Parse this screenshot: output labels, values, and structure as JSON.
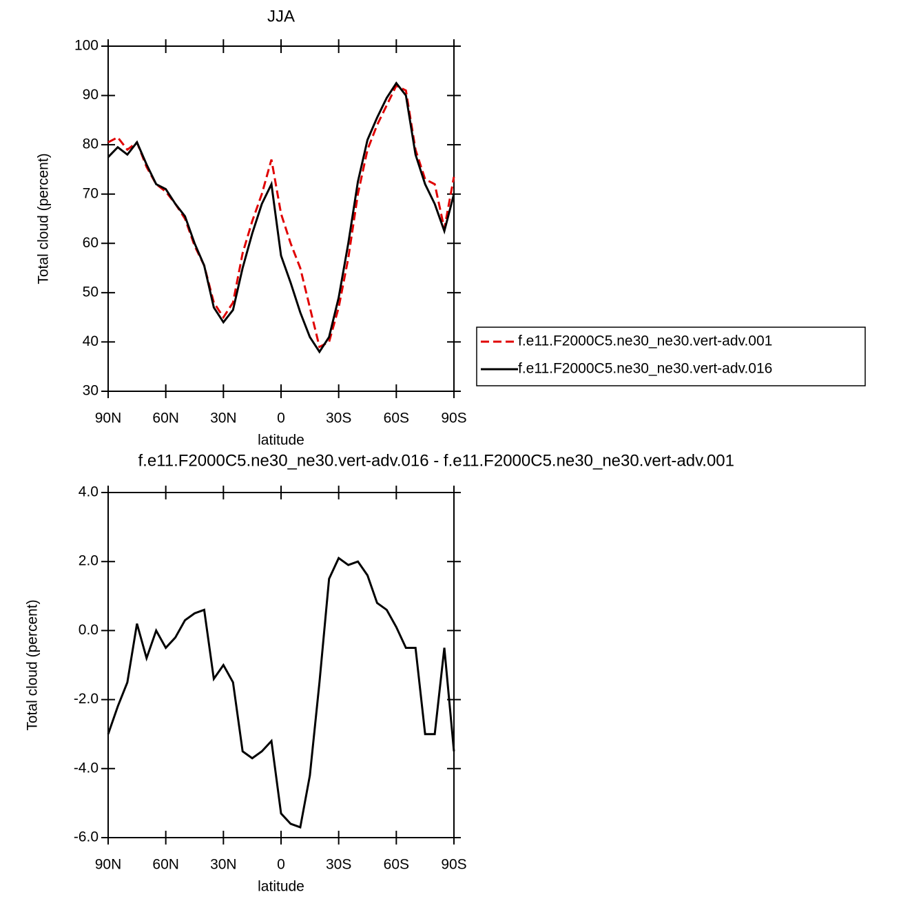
{
  "chart_data": [
    {
      "type": "line",
      "title": "JJA",
      "xlabel": "latitude",
      "ylabel": "Total cloud (percent)",
      "x": [
        90,
        85,
        80,
        75,
        70,
        65,
        60,
        55,
        50,
        45,
        40,
        35,
        30,
        25,
        20,
        15,
        10,
        5,
        0,
        -5,
        -10,
        -15,
        -20,
        -25,
        -30,
        -35,
        -40,
        -45,
        -50,
        -55,
        -60,
        -65,
        -70,
        -75,
        -80,
        -85,
        -90
      ],
      "xlim": [
        90,
        -90
      ],
      "xticks": [
        {
          "value": 90,
          "label": "90N"
        },
        {
          "value": 60,
          "label": "60N"
        },
        {
          "value": 30,
          "label": "30N"
        },
        0,
        {
          "value": -30,
          "label": "30S"
        },
        {
          "value": -60,
          "label": "60S"
        },
        {
          "value": -90,
          "label": "90S"
        }
      ],
      "ylim": [
        30,
        100
      ],
      "yticks": [
        30,
        40,
        50,
        60,
        70,
        80,
        90,
        100
      ],
      "legend": "right",
      "series": [
        {
          "name": "f.e11.F2000C5.ne30_ne30.vert-adv.001",
          "color": "#e00000",
          "line_style": "dashed",
          "values": [
            80.5,
            81.5,
            79,
            80.5,
            75.5,
            72,
            70.5,
            68,
            65,
            59.5,
            55.5,
            48,
            45,
            48,
            58,
            64.5,
            70,
            77,
            66,
            60,
            55,
            47,
            39,
            40,
            47,
            57,
            70,
            79,
            84,
            88,
            92,
            91,
            79,
            73,
            72,
            63,
            73.5
          ]
        },
        {
          "name": "f.e11.F2000C5.ne30_ne30.vert-adv.016",
          "color": "#000000",
          "line_style": "solid",
          "values": [
            77.5,
            79.5,
            78,
            80.5,
            76,
            72,
            71,
            68,
            65.5,
            60,
            55.5,
            47,
            44,
            46.5,
            55,
            62,
            68,
            72,
            57.5,
            52,
            46,
            41,
            38,
            41,
            49,
            60,
            72.5,
            81,
            85.5,
            89.5,
            92.5,
            90,
            78,
            72,
            68,
            62.5,
            70
          ]
        }
      ]
    },
    {
      "type": "line",
      "title": "f.e11.F2000C5.ne30_ne30.vert-adv.016 - f.e11.F2000C5.ne30_ne30.vert-adv.001",
      "xlabel": "latitude",
      "ylabel": "Total cloud (percent)",
      "x": [
        90,
        85,
        80,
        75,
        70,
        65,
        60,
        55,
        50,
        45,
        40,
        35,
        30,
        25,
        20,
        15,
        10,
        5,
        0,
        -5,
        -10,
        -15,
        -20,
        -25,
        -30,
        -35,
        -40,
        -45,
        -50,
        -55,
        -60,
        -65,
        -70,
        -75,
        -80,
        -85,
        -90
      ],
      "xlim": [
        90,
        -90
      ],
      "xticks": [
        {
          "value": 90,
          "label": "90N"
        },
        {
          "value": 60,
          "label": "60N"
        },
        {
          "value": 30,
          "label": "30N"
        },
        0,
        {
          "value": -30,
          "label": "30S"
        },
        {
          "value": -60,
          "label": "60S"
        },
        {
          "value": -90,
          "label": "90S"
        }
      ],
      "ylim": [
        -6,
        4
      ],
      "yticks": [
        {
          "value": -6,
          "label": "-6.0"
        },
        {
          "value": -4,
          "label": "-4.0"
        },
        {
          "value": -2,
          "label": "-2.0"
        },
        {
          "value": 0,
          "label": "0.0"
        },
        {
          "value": 2,
          "label": "2.0"
        },
        {
          "value": 4,
          "label": "4.0"
        }
      ],
      "series": [
        {
          "color": "#000000",
          "line_style": "solid",
          "values": [
            -3,
            -2.2,
            -1.5,
            0.2,
            -0.8,
            0,
            -0.5,
            -0.2,
            0.3,
            0.5,
            0.6,
            -1.4,
            -1,
            -1.5,
            -3.5,
            -3.7,
            -3.5,
            -3.2,
            -5.3,
            -5.6,
            -5.7,
            -4.2,
            -1.5,
            1.5,
            2.1,
            1.9,
            2,
            1.6,
            0.8,
            0.6,
            0.1,
            -0.5,
            -0.5,
            -3,
            -3,
            -0.5,
            -3.5
          ]
        }
      ]
    }
  ]
}
